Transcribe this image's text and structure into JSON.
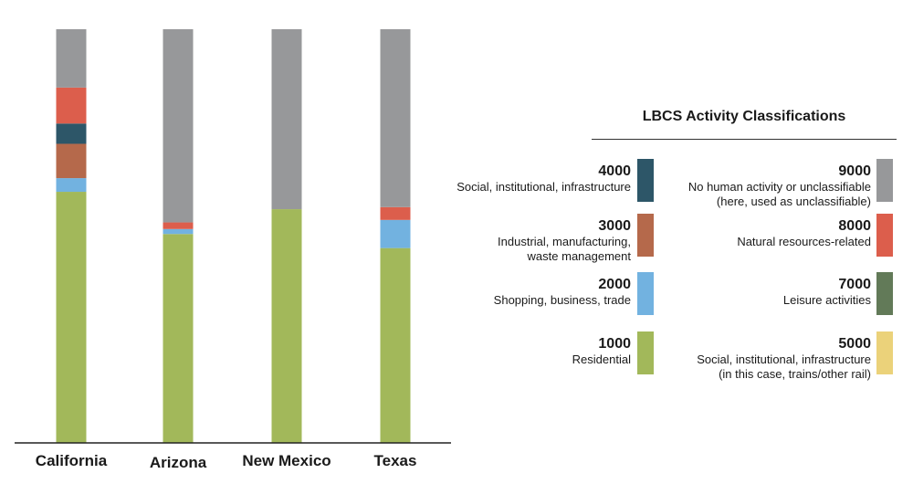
{
  "chart_data": {
    "type": "bar",
    "stacked": true,
    "normalized": true,
    "categories": [
      "California",
      "Arizona",
      "New Mexico",
      "Texas"
    ],
    "series": [
      {
        "name": "Residential",
        "code": "1000",
        "color": "#a2b85a",
        "values": [
          0.607,
          0.505,
          0.565,
          0.471
        ]
      },
      {
        "name": "Shopping, business, trade",
        "code": "2000",
        "color": "#72b2e0",
        "values": [
          0.033,
          0.012,
          0.0,
          0.068
        ]
      },
      {
        "name": "Industrial, manufacturing, waste management",
        "code": "3000",
        "color": "#b5694b",
        "values": [
          0.083,
          0.0,
          0.0,
          0.0
        ]
      },
      {
        "name": "Social, institutional, infrastructure",
        "code": "4000",
        "color": "#2d5668",
        "values": [
          0.049,
          0.0,
          0.0,
          0.0
        ]
      },
      {
        "name": "Natural resources-related",
        "code": "8000",
        "color": "#dc5e4c",
        "values": [
          0.087,
          0.016,
          0.0,
          0.031
        ]
      },
      {
        "name": "No human activity or unclassifiable (here, used as unclassifiable)",
        "code": "9000",
        "color": "#97989a",
        "values": [
          0.141,
          0.467,
          0.435,
          0.43
        ]
      }
    ],
    "ylim": [
      0,
      1
    ],
    "grid": false,
    "legend_position": "right"
  },
  "legend": {
    "title": "LBCS Activity Classifications",
    "left": [
      {
        "code": "4000",
        "desc": [
          "Social, institutional, infrastructure"
        ],
        "color": "#2d5668"
      },
      {
        "code": "3000",
        "desc": [
          "Industrial, manufacturing,",
          "waste management"
        ],
        "color": "#b5694b"
      },
      {
        "code": "2000",
        "desc": [
          "Shopping, business, trade"
        ],
        "color": "#72b2e0"
      },
      {
        "code": "1000",
        "desc": [
          "Residential"
        ],
        "color": "#a2b85a"
      }
    ],
    "right": [
      {
        "code": "9000",
        "desc": [
          "No human activity or unclassifiable",
          "(here, used as unclassifiable)"
        ],
        "color": "#97989a"
      },
      {
        "code": "8000",
        "desc": [
          "Natural resources-related"
        ],
        "color": "#dc5e4c"
      },
      {
        "code": "7000",
        "desc": [
          "Leisure activities"
        ],
        "color": "#627a58"
      },
      {
        "code": "5000",
        "desc": [
          "Social, institutional, infrastructure",
          "(in this case, trains/other rail)"
        ],
        "color": "#ebd27a"
      }
    ]
  }
}
